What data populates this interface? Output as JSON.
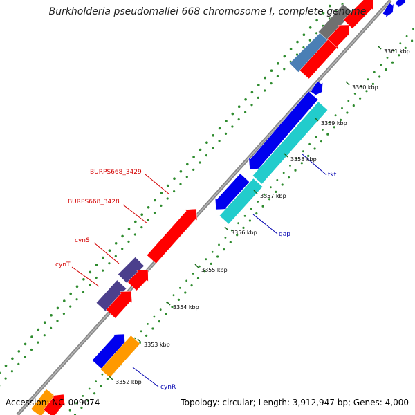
{
  "title": "Burkholderia pseudomallei 668 chromosome I, complete genome",
  "footer": {
    "accession": "Accession: NC_009074",
    "topology": "Topology: circular; Length: 3,912,947 bp; Genes: 4,000"
  },
  "ticks": [
    "3352 kbp",
    "3353 kbp",
    "3354 kbp",
    "3355 kbp",
    "3356 kbp",
    "3357 kbp",
    "3358 kbp",
    "3359 kbp",
    "3360 kbp",
    "3361 kbp"
  ],
  "gene_labels": {
    "burps3429": "BURPS668_3429",
    "burps3428": "BURPS668_3428",
    "cynS": "cynS",
    "cynT": "cynT",
    "tkt": "tkt",
    "gap": "gap",
    "cynR": "cynR"
  },
  "colors": {
    "red": "#ff0000",
    "blue": "#0000ee",
    "cyan": "#22cccc",
    "orange": "#ff9900",
    "indigo": "#4b3f8c",
    "steelblue": "#4a7fb5",
    "gray": "#707070",
    "green_dots": "#2e8b2e"
  }
}
